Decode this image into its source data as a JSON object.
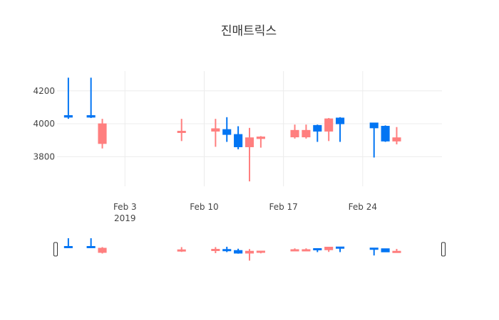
{
  "chart_data": {
    "type": "candlestick",
    "title": "진매트릭스",
    "xlabel": "",
    "ylabel": "",
    "x_ticks": [
      {
        "date": "2019-02-03",
        "label": "Feb 3",
        "sublabel": "2019"
      },
      {
        "date": "2019-02-10",
        "label": "Feb 10",
        "sublabel": ""
      },
      {
        "date": "2019-02-17",
        "label": "Feb 17",
        "sublabel": ""
      },
      {
        "date": "2019-02-24",
        "label": "Feb 24",
        "sublabel": ""
      }
    ],
    "y_ticks": [
      3800,
      4000,
      4200
    ],
    "xlim": [
      "2019-01-28",
      "2019-03-03"
    ],
    "ylim": [
      3620,
      4320
    ],
    "grid": true,
    "rangeslider": true,
    "colors": {
      "increasing": "#ff7f7f",
      "decreasing": "#0275f3"
    },
    "candles": [
      {
        "date": "2019-01-29",
        "open": 4050,
        "high": 4280,
        "low": 4030,
        "close": 4040
      },
      {
        "date": "2019-01-31",
        "open": 4050,
        "high": 4280,
        "low": 4035,
        "close": 4040
      },
      {
        "date": "2019-02-01",
        "open": 3880,
        "high": 4030,
        "low": 3850,
        "close": 4000
      },
      {
        "date": "2019-02-08",
        "open": 3950,
        "high": 4030,
        "low": 3895,
        "close": 3955
      },
      {
        "date": "2019-02-11",
        "open": 3955,
        "high": 4030,
        "low": 3860,
        "close": 3970
      },
      {
        "date": "2019-02-12",
        "open": 3965,
        "high": 4040,
        "low": 3890,
        "close": 3935
      },
      {
        "date": "2019-02-13",
        "open": 3935,
        "high": 3985,
        "low": 3845,
        "close": 3860
      },
      {
        "date": "2019-02-14",
        "open": 3860,
        "high": 3975,
        "low": 3650,
        "close": 3915
      },
      {
        "date": "2019-02-15",
        "open": 3910,
        "high": 3925,
        "low": 3855,
        "close": 3920
      },
      {
        "date": "2019-02-18",
        "open": 3920,
        "high": 3995,
        "low": 3910,
        "close": 3960
      },
      {
        "date": "2019-02-19",
        "open": 3920,
        "high": 3995,
        "low": 3910,
        "close": 3960
      },
      {
        "date": "2019-02-20",
        "open": 3990,
        "high": 3995,
        "low": 3890,
        "close": 3955
      },
      {
        "date": "2019-02-21",
        "open": 3955,
        "high": 4035,
        "low": 3895,
        "close": 4030
      },
      {
        "date": "2019-02-22",
        "open": 4035,
        "high": 4040,
        "low": 3890,
        "close": 4000
      },
      {
        "date": "2019-02-25",
        "open": 4005,
        "high": 4005,
        "low": 3795,
        "close": 3975
      },
      {
        "date": "2019-02-26",
        "open": 3985,
        "high": 3990,
        "low": 3890,
        "close": 3895
      },
      {
        "date": "2019-02-27",
        "open": 3895,
        "high": 3980,
        "low": 3875,
        "close": 3915
      }
    ]
  }
}
